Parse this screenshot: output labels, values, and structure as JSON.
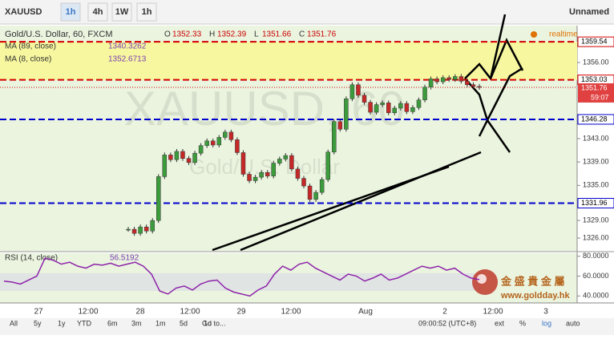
{
  "toolbar": {
    "symbol": "XAUUSD",
    "intervals": [
      "1h",
      "4h",
      "1W",
      "1h"
    ],
    "layout_name": "Unnamed"
  },
  "legend": {
    "title": "Gold/U.S. Dollar, 60, FXCM",
    "ohlc": [
      {
        "key": "O",
        "value": "1352.33"
      },
      {
        "key": "H",
        "value": "1352.39"
      },
      {
        "key": "L",
        "value": "1351.66"
      },
      {
        "key": "C",
        "value": "1351.76"
      }
    ],
    "studies": [
      {
        "name": "MA (89, close)",
        "value": "1340.3262"
      },
      {
        "name": "MA (8, close)",
        "value": "1352.6713"
      }
    ],
    "status": "realtime"
  },
  "watermark": {
    "line1": "XAUUSD, 60",
    "line2": "Gold/U.S. Dollar"
  },
  "price_axis": {
    "ylim": [
      1323.95,
      1361.75
    ],
    "ticks": [
      {
        "value": 1356,
        "label": "1356.00"
      },
      {
        "value": 1343,
        "label": "1343.00"
      },
      {
        "value": 1339,
        "label": "1339.00"
      },
      {
        "value": 1335,
        "label": "1335.00"
      },
      {
        "value": 1329,
        "label": "1329.00"
      },
      {
        "value": 1326,
        "label": "1326.00"
      }
    ],
    "levels": [
      {
        "value": 1359.54,
        "color": "#d40000"
      },
      {
        "value": 1353.03,
        "color": "#d40000"
      },
      {
        "value": 1346.28,
        "color": "#0000cc"
      },
      {
        "value": 1331.96,
        "color": "#0000cc"
      }
    ],
    "last_price": {
      "value": 1351.76,
      "countdown": "59:07"
    }
  },
  "candles": [
    1327.5,
    1326.8,
    1327.9,
    1327.2,
    1329.0,
    1336.5,
    1340.2,
    1339.4,
    1340.8,
    1339.6,
    1338.9,
    1340.5,
    1341.8,
    1342.6,
    1341.9,
    1343.2,
    1344.1,
    1342.8,
    1340.6,
    1336.9,
    1335.8,
    1336.4,
    1337.2,
    1336.6,
    1338.8,
    1339.5,
    1340.1,
    1337.8,
    1336.2,
    1334.9,
    1332.6,
    1333.8,
    1336.0,
    1340.7,
    1345.9,
    1344.6,
    1349.8,
    1352.2,
    1350.4,
    1349.2,
    1347.5,
    1348.8,
    1349.1,
    1347.4,
    1348.2,
    1349.0,
    1347.6,
    1348.3,
    1349.6,
    1351.8,
    1353.2,
    1352.7,
    1353.4,
    1353.1,
    1353.6,
    1352.8,
    1352.2,
    1351.9,
    1351.76
  ],
  "rsi": {
    "name": "RSI (14, close)",
    "current": "56.5192",
    "ylim": [
      33,
      83
    ],
    "ticks": [
      {
        "value": 80,
        "label": "80.0000"
      },
      {
        "value": 60,
        "label": "60.0000"
      },
      {
        "value": 40,
        "label": "40.0000"
      }
    ],
    "values": [
      55,
      54,
      52,
      56,
      60,
      78,
      76,
      72,
      74,
      70,
      68,
      72,
      71,
      73,
      70,
      72,
      74,
      70,
      62,
      45,
      42,
      48,
      50,
      46,
      52,
      55,
      56,
      48,
      44,
      42,
      40,
      46,
      50,
      62,
      70,
      66,
      72,
      74,
      68,
      64,
      60,
      56,
      62,
      60,
      55,
      58,
      62,
      56,
      58,
      62,
      66,
      70,
      68,
      70,
      66,
      68,
      62,
      58,
      56.5
    ]
  },
  "time_axis": [
    "27",
    "12:00",
    "28",
    "12:00",
    "29",
    "12:00",
    "Aug",
    "2",
    "12:00",
    "3"
  ],
  "bottom_bar": {
    "ranges": [
      "All",
      "5y",
      "1y",
      "YTD",
      "6m",
      "3m",
      "1m",
      "5d",
      "1d"
    ],
    "goto": "Go to...",
    "clock": "09:00:52 (UTC+8)",
    "options": [
      "ext",
      "%",
      "log",
      "auto"
    ]
  },
  "logo": {
    "name": "金 盛 貴 金 屬",
    "url": "www.goldday.hk"
  }
}
